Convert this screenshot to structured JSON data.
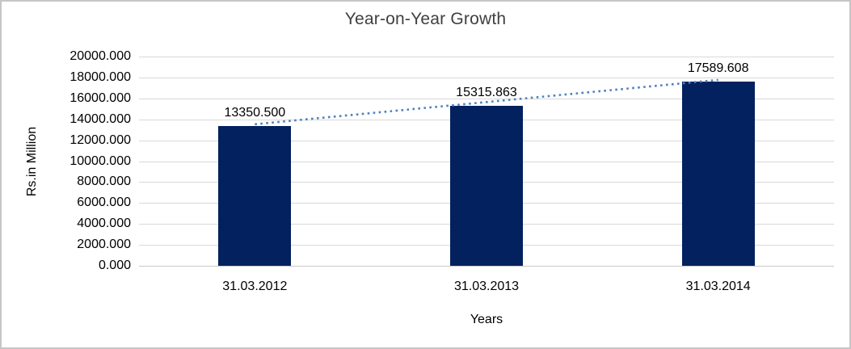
{
  "chart_data": {
    "type": "bar",
    "title": "Year-on-Year Growth",
    "categories": [
      "31.03.2012",
      "31.03.2013",
      "31.03.2014"
    ],
    "values": [
      13350.5,
      15315.863,
      17589.608
    ],
    "data_labels": [
      "13350.500",
      "15315.863",
      "17589.608"
    ],
    "xlabel": "Years",
    "ylabel": "Rs.in Million",
    "ylim": [
      0,
      20000
    ],
    "ytick_step": 2000,
    "ytick_labels": [
      "20000.000",
      "18000.000",
      "16000.000",
      "14000.000",
      "12000.000",
      "10000.000",
      "8000.000",
      "6000.000",
      "4000.000",
      "2000.000",
      "0.000"
    ],
    "grid": true,
    "legend": "none",
    "trendline": {
      "type": "linear",
      "style": "dotted"
    },
    "colors": {
      "bar": "#02215e",
      "trendline": "#4f81bd",
      "gridline": "#d9d9d9",
      "baseline": "#c9c9c9",
      "text": "#000000",
      "title_text": "#404040",
      "frame_border": "#c6c6c6",
      "background": "#ffffff"
    }
  }
}
